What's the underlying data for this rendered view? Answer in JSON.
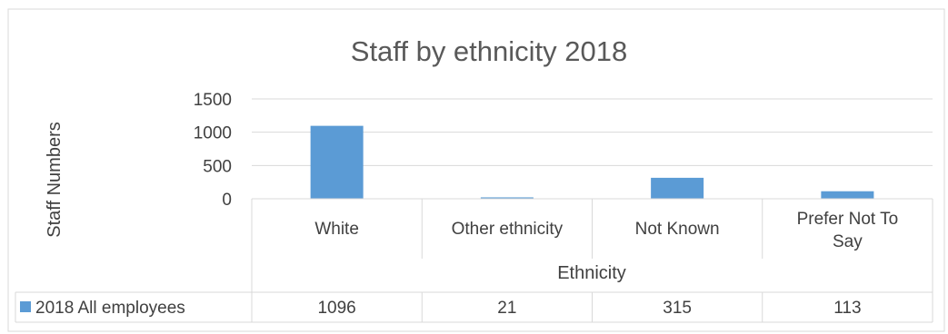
{
  "chart_data": {
    "type": "bar",
    "title": "Staff by ethnicity 2018",
    "ylabel": "Staff Numbers",
    "xlabel": "Ethnicity",
    "ylim": [
      0,
      1500
    ],
    "yticks": [
      0,
      500,
      1000,
      1500
    ],
    "grid": true,
    "legend_placement": "data-table",
    "categories": [
      "White",
      "Other ethnicity",
      "Not Known",
      "Prefer Not To Say"
    ],
    "category_lines": [
      [
        "White"
      ],
      [
        "Other ethnicity"
      ],
      [
        "Not Known"
      ],
      [
        "Prefer Not To",
        "Say"
      ]
    ],
    "series": [
      {
        "name": "2018 All employees",
        "values": [
          1096,
          21,
          315,
          113
        ],
        "color": "#5b9bd5"
      }
    ],
    "data_table": true
  },
  "colors": {
    "bar": "#5b9bd5",
    "gridline": "#d9d9d9",
    "border": "#d9d9d9",
    "text": "#404040"
  }
}
